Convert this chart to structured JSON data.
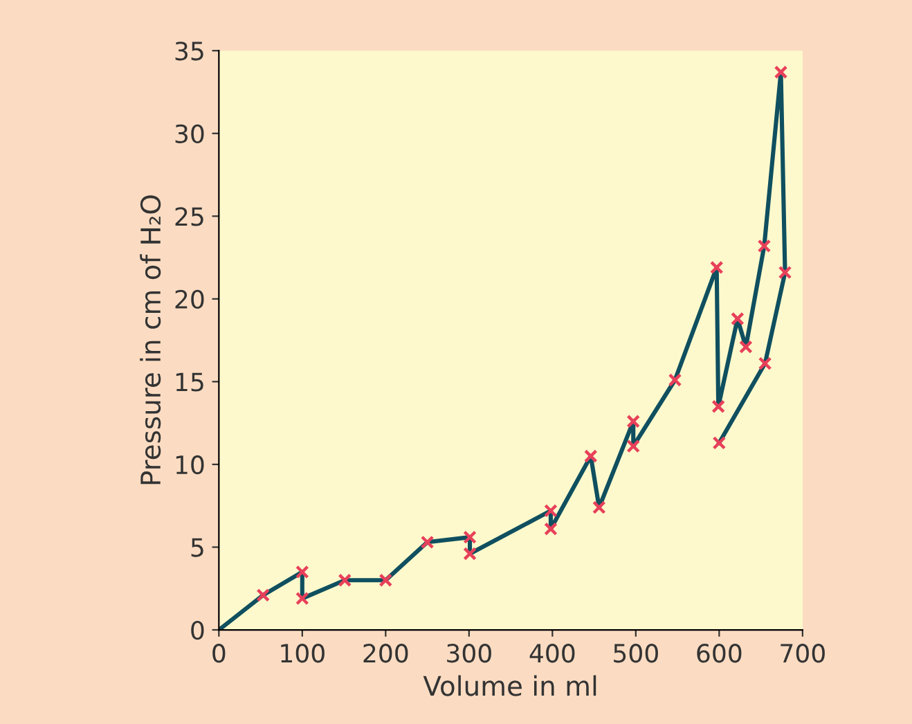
{
  "chart_data": {
    "type": "line",
    "xlabel": "Volume in ml",
    "ylabel": "Pressure in cm of H₂O",
    "xlim": [
      0,
      700
    ],
    "xticks": [
      0,
      100,
      200,
      300,
      400,
      500,
      600,
      700
    ],
    "ylim": [
      0,
      35
    ],
    "yticks": [
      0,
      5,
      10,
      15,
      20,
      25,
      30,
      35
    ],
    "grid": false,
    "legend": false,
    "series": [
      {
        "color": "#0f4f5f",
        "marker": "none",
        "line_style": "solid",
        "x": [
          0,
          53,
          100,
          100,
          151,
          200,
          250,
          301,
          301,
          398,
          398,
          446,
          456,
          497,
          497,
          547,
          597,
          599,
          622,
          632,
          654,
          674,
          679,
          655,
          600
        ],
        "values": [
          0,
          2.1,
          3.5,
          1.9,
          3.0,
          3.0,
          5.3,
          5.6,
          4.6,
          7.2,
          6.1,
          10.5,
          7.4,
          12.6,
          11.1,
          15.1,
          21.9,
          13.5,
          18.8,
          17.1,
          23.2,
          33.7,
          21.6,
          16.1,
          11.3
        ]
      },
      {
        "type": "scatter",
        "color": "#e8405a",
        "marker": "cross",
        "x": [
          53,
          100,
          100,
          151,
          200,
          250,
          301,
          301,
          398,
          398,
          446,
          456,
          497,
          497,
          547,
          597,
          599,
          622,
          632,
          654,
          674,
          679,
          655,
          600
        ],
        "values": [
          2.1,
          3.5,
          1.9,
          3.0,
          3.0,
          5.3,
          5.6,
          4.6,
          7.2,
          6.1,
          10.5,
          7.4,
          12.6,
          11.1,
          15.1,
          21.9,
          13.5,
          18.8,
          17.1,
          23.2,
          33.7,
          21.6,
          16.1,
          11.3
        ]
      }
    ]
  }
}
